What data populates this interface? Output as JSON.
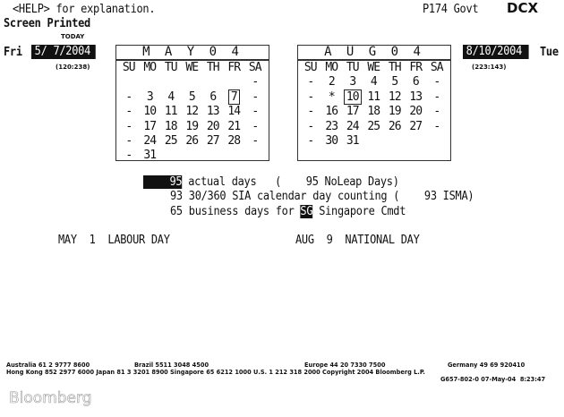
{
  "header": {
    "help": "<HELP> for explanation.",
    "printed": "Screen Printed",
    "page": "P174 Govt",
    "function": "DCX"
  },
  "start": {
    "label": "TODAY",
    "weekday": "Fri",
    "date": "5/ 7/2004",
    "counts": "(120:238)"
  },
  "end": {
    "weekday": "Tue",
    "date": "8/10/2004",
    "counts": "(223:143)"
  },
  "calendars": [
    {
      "title": "M A Y  0 4",
      "days": [
        "SU",
        "MO",
        "TU",
        "WE",
        "TH",
        "FR",
        "SA"
      ],
      "weeks": [
        [
          "",
          "",
          "",
          "",
          "",
          "",
          "-"
        ],
        [
          "-",
          "3",
          "4",
          "5",
          "6",
          "7",
          "-"
        ],
        [
          "-",
          "10",
          "11",
          "12",
          "13",
          "14",
          "-"
        ],
        [
          "-",
          "17",
          "18",
          "19",
          "20",
          "21",
          "-"
        ],
        [
          "-",
          "24",
          "25",
          "26",
          "27",
          "28",
          "-"
        ],
        [
          "-",
          "31",
          "",
          "",
          "",
          "",
          ""
        ]
      ],
      "selected": "7"
    },
    {
      "title": "A U G  0 4",
      "days": [
        "SU",
        "MO",
        "TU",
        "WE",
        "TH",
        "FR",
        "SA"
      ],
      "weeks": [
        [
          "-",
          "2",
          "3",
          "4",
          "5",
          "6",
          "-"
        ],
        [
          "-",
          "*",
          "10",
          "11",
          "12",
          "13",
          "-"
        ],
        [
          "-",
          "16",
          "17",
          "18",
          "19",
          "20",
          "-"
        ],
        [
          "-",
          "23",
          "24",
          "25",
          "26",
          "27",
          "-"
        ],
        [
          "-",
          "30",
          "31",
          "",
          "",
          "",
          ""
        ]
      ],
      "selected": "10"
    }
  ],
  "results": {
    "actual": "95",
    "actual_text": " actual days   (    95 NoLeap Days)",
    "line2": "93 30/360 SIA calendar day counting (    93 ISMA)",
    "business_pre": "65 business days for ",
    "calendar_code": "SG",
    "business_post": " Singapore Cmdt"
  },
  "holidays": [
    "MAY  1  LABOUR DAY",
    "AUG  9  NATIONAL DAY"
  ],
  "footer": {
    "line1": [
      "Australia 61 2 9777 8600",
      "Brazil 5511 3048 4500",
      "Europe 44 20 7330 7500",
      "Germany 49 69 920410"
    ],
    "line2": "Hong Kong 852 2977 6000 Japan 81 3 3201 8900 Singapore 65 6212 1000 U.S. 1 212 318 2000 Copyright 2004 Bloomberg L.P.",
    "line3": "G657-802-0 07-May-04  8:23:47",
    "logo": "Bloomberg"
  }
}
